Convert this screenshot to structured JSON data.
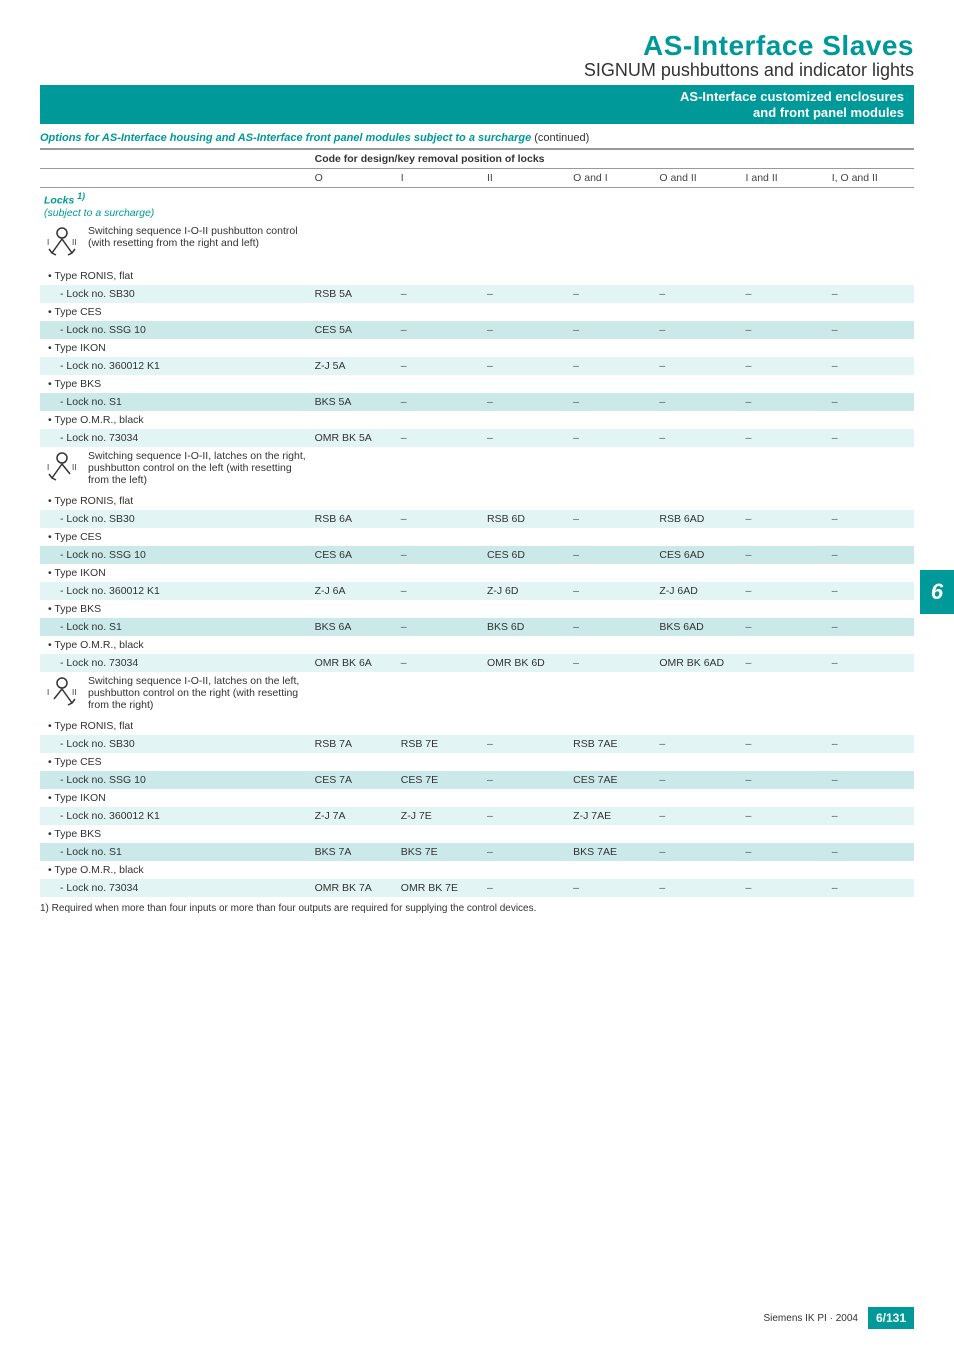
{
  "header": {
    "title": "AS-Interface Slaves",
    "subtitle": "SIGNUM pushbuttons and indicator lights",
    "barLine1": "AS-Interface customized enclosures",
    "barLine2": "and front panel modules"
  },
  "sectionTitle": "Options for AS-Interface housing and AS-Interface front panel modules subject to a surcharge",
  "sectionCont": "(continued)",
  "tableHeader": "Code for design/key removal position of locks",
  "cols": [
    "O",
    "I",
    "II",
    "O and I",
    "O and II",
    "I and II",
    "I, O and II"
  ],
  "locksHdr": "Locks",
  "locksSup": "1)",
  "locksSub": "(subject to a surcharge)",
  "groups": [
    {
      "desc": "Switching sequence I-O-II pushbutton control (with resetting from the right and left)",
      "icon": "both",
      "rows": [
        {
          "t": "• Type RONIS, flat",
          "cls": "plain"
        },
        {
          "t": "- Lock no. SB30",
          "cls": "odd",
          "v": [
            "RSB 5A",
            "–",
            "–",
            "–",
            "–",
            "–",
            "–"
          ]
        },
        {
          "t": "• Type CES",
          "cls": "plain"
        },
        {
          "t": "- Lock no. SSG 10",
          "cls": "even",
          "v": [
            "CES 5A",
            "–",
            "–",
            "–",
            "–",
            "–",
            "–"
          ]
        },
        {
          "t": "• Type IKON",
          "cls": "plain"
        },
        {
          "t": "- Lock no. 360012 K1",
          "cls": "odd",
          "v": [
            "Z-J 5A",
            "–",
            "–",
            "–",
            "–",
            "–",
            "–"
          ]
        },
        {
          "t": "• Type BKS",
          "cls": "plain"
        },
        {
          "t": "- Lock no. S1",
          "cls": "even",
          "v": [
            "BKS 5A",
            "–",
            "–",
            "–",
            "–",
            "–",
            "–"
          ]
        },
        {
          "t": "• Type O.M.R., black",
          "cls": "plain"
        },
        {
          "t": "- Lock no. 73034",
          "cls": "odd",
          "v": [
            "OMR BK 5A",
            "–",
            "–",
            "–",
            "–",
            "–",
            "–"
          ]
        }
      ]
    },
    {
      "desc": "Switching sequence I-O-II, latches on the right, pushbutton control on the left (with resetting from the left)",
      "icon": "left",
      "rows": [
        {
          "t": "• Type RONIS, flat",
          "cls": "plain"
        },
        {
          "t": "- Lock no. SB30",
          "cls": "odd",
          "v": [
            "RSB 6A",
            "–",
            "RSB 6D",
            "–",
            "RSB 6AD",
            "–",
            "–"
          ]
        },
        {
          "t": "• Type CES",
          "cls": "plain"
        },
        {
          "t": "- Lock no. SSG 10",
          "cls": "even",
          "v": [
            "CES 6A",
            "–",
            "CES 6D",
            "–",
            "CES 6AD",
            "–",
            "–"
          ]
        },
        {
          "t": "• Type IKON",
          "cls": "plain"
        },
        {
          "t": "- Lock no. 360012 K1",
          "cls": "odd",
          "v": [
            "Z-J 6A",
            "–",
            "Z-J 6D",
            "–",
            "Z-J 6AD",
            "–",
            "–"
          ]
        },
        {
          "t": "• Type BKS",
          "cls": "plain"
        },
        {
          "t": "- Lock no. S1",
          "cls": "even",
          "v": [
            "BKS 6A",
            "–",
            "BKS 6D",
            "–",
            "BKS 6AD",
            "–",
            "–"
          ]
        },
        {
          "t": "• Type O.M.R., black",
          "cls": "plain"
        },
        {
          "t": "- Lock no. 73034",
          "cls": "odd",
          "v": [
            "OMR BK 6A",
            "–",
            "OMR BK 6D",
            "–",
            "OMR BK 6AD",
            "–",
            "–"
          ]
        }
      ]
    },
    {
      "desc": "Switching sequence I-O-II, latches on the left, pushbutton control on the right (with resetting from the right)",
      "icon": "right",
      "rows": [
        {
          "t": "• Type RONIS, flat",
          "cls": "plain"
        },
        {
          "t": "- Lock no. SB30",
          "cls": "odd",
          "v": [
            "RSB 7A",
            "RSB 7E",
            "–",
            "RSB 7AE",
            "–",
            "–",
            "–"
          ]
        },
        {
          "t": "• Type CES",
          "cls": "plain"
        },
        {
          "t": "- Lock no. SSG 10",
          "cls": "even",
          "v": [
            "CES 7A",
            "CES 7E",
            "–",
            "CES 7AE",
            "–",
            "–",
            "–"
          ]
        },
        {
          "t": "• Type IKON",
          "cls": "plain"
        },
        {
          "t": "- Lock no. 360012 K1",
          "cls": "odd",
          "v": [
            "Z-J 7A",
            "Z-J 7E",
            "–",
            "Z-J 7AE",
            "–",
            "–",
            "–"
          ]
        },
        {
          "t": "• Type BKS",
          "cls": "plain"
        },
        {
          "t": "- Lock no. S1",
          "cls": "even",
          "v": [
            "BKS 7A",
            "BKS 7E",
            "–",
            "BKS 7AE",
            "–",
            "–",
            "–"
          ]
        },
        {
          "t": "• Type O.M.R., black",
          "cls": "plain"
        },
        {
          "t": "- Lock no. 73034",
          "cls": "odd",
          "v": [
            "OMR BK 7A",
            "OMR BK 7E",
            "–",
            "–",
            "–",
            "–",
            "–"
          ]
        }
      ]
    }
  ],
  "footnote": "1) Required when more than four inputs or more than four outputs are required for supplying the control devices.",
  "sideTab": "6",
  "footer": {
    "text": "Siemens IK PI · 2004",
    "page": "6/131"
  },
  "colors": {
    "teal": "#009999",
    "odd": "#e2f4f4",
    "even": "#cbe9e9"
  }
}
